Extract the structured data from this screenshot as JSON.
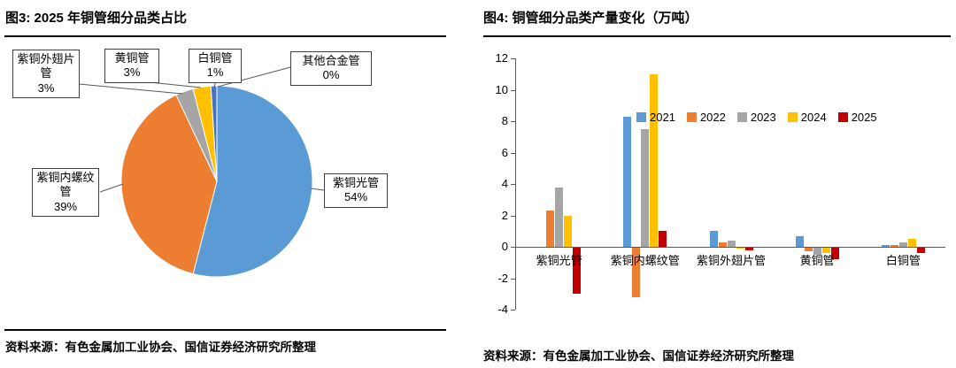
{
  "figure3": {
    "title": "图3: 2025 年铜管细分品类占比",
    "source": "资料来源：有色金属加工业协会、国信证券经济研究所整理"
  },
  "figure4": {
    "title": "图4: 铜管细分品类产量变化（万吨）",
    "source": "资料来源：有色金属加工业协会、国信证券经济研究所整理"
  },
  "chart_data": [
    {
      "type": "pie",
      "title": "2025 年铜管细分品类占比",
      "labels": [
        "紫铜光管",
        "紫铜内螺纹管",
        "紫铜外翅片管",
        "黄铜管",
        "白铜管",
        "其他合金管"
      ],
      "values": [
        54,
        39,
        3,
        3,
        1,
        0
      ],
      "values_display": [
        "54%",
        "39%",
        "3%",
        "3%",
        "1%",
        "0%"
      ],
      "colors": [
        "#5B9BD5",
        "#ED7D31",
        "#A5A5A5",
        "#FFC000",
        "#4472C4",
        "#264478"
      ],
      "unit": "percent",
      "start_angle_deg": -90,
      "direction": "clockwise"
    },
    {
      "type": "bar",
      "title": "铜管细分品类产量变化（万吨）",
      "categories": [
        "紫铜光管",
        "紫铜内螺纹管",
        "紫铜外翅片管",
        "黄铜管",
        "白铜管"
      ],
      "series": [
        {
          "name": "2021",
          "color": "#5B9BD5",
          "values": [
            0,
            8.3,
            1.0,
            0.7,
            0.1
          ]
        },
        {
          "name": "2022",
          "color": "#ED7D31",
          "values": [
            2.3,
            -3.2,
            0.3,
            -0.3,
            0.1
          ]
        },
        {
          "name": "2023",
          "color": "#A5A5A5",
          "values": [
            3.8,
            7.5,
            0.4,
            -0.5,
            0.3
          ]
        },
        {
          "name": "2024",
          "color": "#FFC000",
          "values": [
            2.0,
            11.0,
            -0.1,
            -0.4,
            0.5
          ]
        },
        {
          "name": "2025",
          "color": "#C00000",
          "values": [
            -3.0,
            1.0,
            -0.2,
            -0.8,
            -0.4
          ]
        }
      ],
      "ylim": [
        -4,
        12
      ],
      "yticks": [
        12,
        10,
        8,
        6,
        4,
        2,
        0,
        -2,
        -4
      ],
      "legend": [
        "2021",
        "2022",
        "2023",
        "2024",
        "2025"
      ],
      "legend_position": "top-right",
      "grid": false
    }
  ]
}
